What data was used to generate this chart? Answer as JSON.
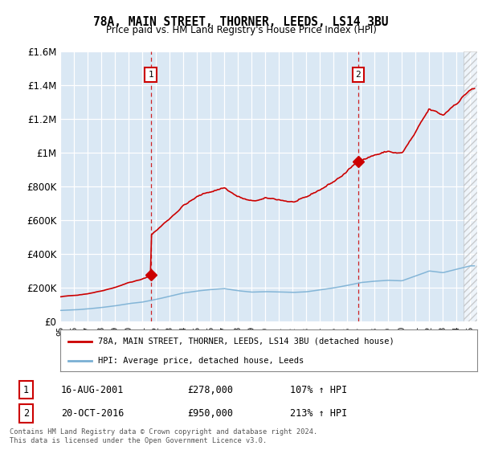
{
  "title": "78A, MAIN STREET, THORNER, LEEDS, LS14 3BU",
  "subtitle": "Price paid vs. HM Land Registry's House Price Index (HPI)",
  "property_label": "78A, MAIN STREET, THORNER, LEEDS, LS14 3BU (detached house)",
  "hpi_label": "HPI: Average price, detached house, Leeds",
  "annotation1": {
    "num": "1",
    "date": "16-AUG-2001",
    "price": "£278,000",
    "pct": "107% ↑ HPI",
    "x_year": 2001.62,
    "y_val": 278000
  },
  "annotation2": {
    "num": "2",
    "date": "20-OCT-2016",
    "price": "£950,000",
    "pct": "213% ↑ HPI",
    "x_year": 2016.79,
    "y_val": 950000
  },
  "footer": "Contains HM Land Registry data © Crown copyright and database right 2024.\nThis data is licensed under the Open Government Licence v3.0.",
  "ylim": [
    0,
    1600000
  ],
  "yticks": [
    0,
    200000,
    400000,
    600000,
    800000,
    1000000,
    1200000,
    1400000,
    1600000
  ],
  "xmin": 1995.0,
  "xmax": 2025.5,
  "background_color": "#dae8f4",
  "line_color_property": "#cc0000",
  "line_color_hpi": "#7ab0d4",
  "vline_color": "#cc0000",
  "sale1_year": 2001.62,
  "sale1_price": 278000,
  "sale2_year": 2016.79,
  "sale2_price": 950000,
  "hatch_start": 2024.5
}
